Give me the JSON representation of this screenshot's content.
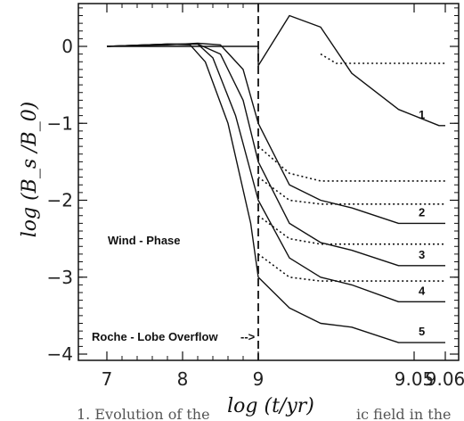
{
  "chart_data": {
    "type": "line",
    "title": "",
    "xlabel": "log (t/yr)",
    "ylabel": "log (B_s /B_0)",
    "x_ticks": [
      "7",
      "8",
      "9",
      "9.05",
      "9.06"
    ],
    "y_ticks": [
      "0",
      "−1",
      "−2",
      "−3",
      "−4"
    ],
    "ylim": [
      -4,
      0.5
    ],
    "grid": false,
    "legend": "none",
    "annotations": {
      "wind_phase": "Wind - Phase",
      "roche": "Roche - Lobe Overflow",
      "roche_arrow": "-->"
    },
    "caption_fragments": {
      "left": "1. Evolution of the",
      "right": "ic field in the"
    },
    "series": [
      {
        "name": "1",
        "style": "solid",
        "x": [
          7.0,
          8.7,
          9.0,
          9.0,
          9.01,
          9.02,
          9.03,
          9.045,
          9.058,
          9.06
        ],
        "y": [
          0,
          0,
          0,
          -0.25,
          0.4,
          0.25,
          -0.35,
          -0.82,
          -1.03,
          -1.03
        ]
      },
      {
        "name": "2",
        "style": "solid",
        "x": [
          7.0,
          7.8,
          8.2,
          8.5,
          8.8,
          9.0,
          9.01,
          9.02,
          9.03,
          9.045,
          9.058,
          9.06
        ],
        "y": [
          0,
          0.02,
          0.04,
          0.02,
          -0.3,
          -1.0,
          -1.8,
          -2.0,
          -2.1,
          -2.3,
          -2.3,
          -2.3
        ]
      },
      {
        "name": "3",
        "style": "solid",
        "x": [
          7.0,
          7.8,
          8.2,
          8.5,
          8.8,
          9.0,
          9.01,
          9.02,
          9.03,
          9.045,
          9.058,
          9.06
        ],
        "y": [
          0,
          0.03,
          0.03,
          -0.1,
          -0.7,
          -1.5,
          -2.3,
          -2.55,
          -2.65,
          -2.85,
          -2.85,
          -2.85
        ]
      },
      {
        "name": "4",
        "style": "solid",
        "x": [
          7.0,
          7.8,
          8.2,
          8.4,
          8.7,
          9.0,
          9.01,
          9.02,
          9.03,
          9.045,
          9.058,
          9.06
        ],
        "y": [
          0,
          0.03,
          0.03,
          -0.15,
          -0.9,
          -2.0,
          -2.75,
          -3.0,
          -3.1,
          -3.32,
          -3.32,
          -3.32
        ]
      },
      {
        "name": "5",
        "style": "solid",
        "x": [
          7.0,
          7.8,
          8.1,
          8.3,
          8.6,
          8.9,
          9.0,
          9.01,
          9.02,
          9.03,
          9.045,
          9.058,
          9.06
        ],
        "y": [
          0,
          0.03,
          0.02,
          -0.2,
          -1.0,
          -2.3,
          -3.0,
          -3.4,
          -3.6,
          -3.65,
          -3.85,
          -3.85,
          -3.85
        ]
      },
      {
        "name": "",
        "style": "dotted",
        "x": [
          9.02,
          9.025,
          9.06
        ],
        "y": [
          -0.1,
          -0.22,
          -0.22
        ]
      },
      {
        "name": "",
        "style": "dotted",
        "x": [
          9.0,
          9.01,
          9.02,
          9.06
        ],
        "y": [
          -1.3,
          -1.65,
          -1.75,
          -1.75
        ]
      },
      {
        "name": "",
        "style": "dotted",
        "x": [
          9.0,
          9.01,
          9.02,
          9.06
        ],
        "y": [
          -1.7,
          -2.0,
          -2.05,
          -2.05
        ]
      },
      {
        "name": "",
        "style": "dotted",
        "x": [
          9.0,
          9.01,
          9.02,
          9.06
        ],
        "y": [
          -2.2,
          -2.5,
          -2.57,
          -2.57
        ]
      },
      {
        "name": "",
        "style": "dotted",
        "x": [
          9.0,
          9.01,
          9.02,
          9.06
        ],
        "y": [
          -2.7,
          -3.0,
          -3.05,
          -3.05
        ]
      }
    ],
    "labeled_x_positions": [
      7.0,
      8.0,
      9.0,
      9.05,
      9.06
    ],
    "break_at": 9.0,
    "dashed_vline_x": 9.0
  }
}
